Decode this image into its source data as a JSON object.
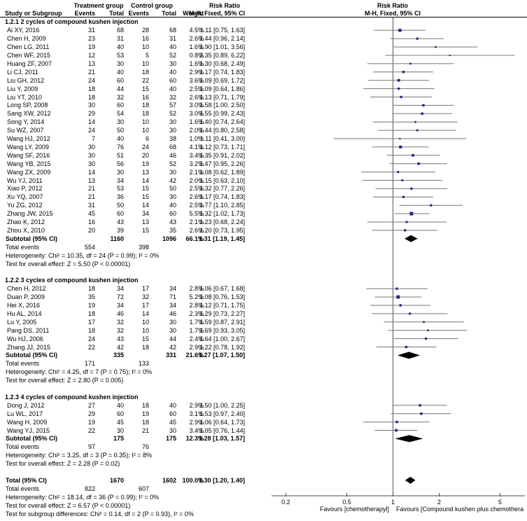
{
  "header": {
    "treatment_group": "Treatment group",
    "control_group": "Control group",
    "risk_ratio": "Risk Ratio",
    "study_or_subgroup": "Study or Subgroup",
    "events": "Events",
    "total": "Total",
    "weight": "Weight",
    "mh_fixed": "M-H, Fixed, 95% CI",
    "plot_risk_ratio": "Risk Ratio",
    "plot_mh_fixed": "M-H, Fixed, 95% CI"
  },
  "colors": {
    "marker": "#28287d",
    "ci_line": "#777777",
    "diamond": "#000000",
    "ref_line": "#555555",
    "axis_line": "#444444",
    "text": "#000000"
  },
  "chart_data": {
    "type": "forest",
    "effect_measure": "Risk Ratio (M-H, Fixed, 95% CI)",
    "x_scale": "log",
    "ticks": [
      "0.2",
      "0.5",
      "1",
      "2",
      "5"
    ],
    "favours_left": "Favours [chemotherapyl]",
    "favours_right": "Favours [Compound kushen plus chemothera",
    "subgroups": [
      {
        "title": "1.2.1 2 cycles of compound kushen injection",
        "studies": [
          {
            "name": "Ai XY, 2016",
            "et": 31,
            "nt": 68,
            "ec": 28,
            "nc": 68,
            "w": 4.5,
            "ci": "1.11 [0.75, 1.63]",
            "rr": 1.11,
            "lo": 0.75,
            "hi": 1.63
          },
          {
            "name": "Chen H, 2009",
            "et": 23,
            "nt": 31,
            "ec": 16,
            "nc": 31,
            "w": 2.6,
            "ci": "1.44 [0.96, 2.14]",
            "rr": 1.44,
            "lo": 0.96,
            "hi": 2.14
          },
          {
            "name": "Chen LG, 2011",
            "et": 19,
            "nt": 40,
            "ec": 10,
            "nc": 40,
            "w": 1.6,
            "ci": "1.90 [1.01, 3.56]",
            "rr": 1.9,
            "lo": 1.01,
            "hi": 3.56
          },
          {
            "name": "Chen WF, 2015",
            "et": 12,
            "nt": 53,
            "ec": 5,
            "nc": 52,
            "w": 0.8,
            "ci": "2.35 [0.89, 6.22]",
            "rr": 2.35,
            "lo": 0.89,
            "hi": 6.22
          },
          {
            "name": "Huang ZF, 2007",
            "et": 13,
            "nt": 30,
            "ec": 10,
            "nc": 30,
            "w": 1.6,
            "ci": "1.30 [0.68, 2.49]",
            "rr": 1.3,
            "lo": 0.68,
            "hi": 2.49
          },
          {
            "name": "Li CJ, 2011",
            "et": 21,
            "nt": 40,
            "ec": 18,
            "nc": 40,
            "w": 2.9,
            "ci": "1.17 [0.74, 1.83]",
            "rr": 1.17,
            "lo": 0.74,
            "hi": 1.83
          },
          {
            "name": "Liu GH, 2012",
            "et": 24,
            "nt": 60,
            "ec": 22,
            "nc": 60,
            "w": 3.6,
            "ci": "1.09 [0.69, 1.72]",
            "rr": 1.09,
            "lo": 0.69,
            "hi": 1.72
          },
          {
            "name": "Liu Y, 2009",
            "et": 18,
            "nt": 44,
            "ec": 15,
            "nc": 40,
            "w": 2.5,
            "ci": "1.09 [0.64, 1.86]",
            "rr": 1.09,
            "lo": 0.64,
            "hi": 1.86
          },
          {
            "name": "Liu YT, 2010",
            "et": 18,
            "nt": 32,
            "ec": 16,
            "nc": 32,
            "w": 2.6,
            "ci": "1.13 [0.71, 1.79]",
            "rr": 1.13,
            "lo": 0.71,
            "hi": 1.79
          },
          {
            "name": "Long SP, 2008",
            "et": 30,
            "nt": 60,
            "ec": 18,
            "nc": 57,
            "w": 3.0,
            "ci": "1.58 [1.00, 2.50]",
            "rr": 1.58,
            "lo": 1.0,
            "hi": 2.5
          },
          {
            "name": "Sang XW, 2012",
            "et": 29,
            "nt": 54,
            "ec": 18,
            "nc": 52,
            "w": 3.0,
            "ci": "1.55 [0.99, 2.43]",
            "rr": 1.55,
            "lo": 0.99,
            "hi": 2.43
          },
          {
            "name": "Song Y, 2014",
            "et": 14,
            "nt": 30,
            "ec": 10,
            "nc": 30,
            "w": 1.6,
            "ci": "1.40 [0.74, 2.64]",
            "rr": 1.4,
            "lo": 0.74,
            "hi": 2.64
          },
          {
            "name": "Su WZ, 2007",
            "et": 24,
            "nt": 50,
            "ec": 10,
            "nc": 30,
            "w": 2.0,
            "ci": "1.44 [0.80, 2.58]",
            "rr": 1.44,
            "lo": 0.8,
            "hi": 2.58
          },
          {
            "name": "Wang HJ, 2012",
            "et": 7,
            "nt": 40,
            "ec": 6,
            "nc": 38,
            "w": 1.0,
            "ci": "1.11 [0.41, 3.00]",
            "rr": 1.11,
            "lo": 0.41,
            "hi": 3.0
          },
          {
            "name": "Wang LY, 2009",
            "et": 30,
            "nt": 76,
            "ec": 24,
            "nc": 68,
            "w": 4.1,
            "ci": "1.12 [0.73, 1.71]",
            "rr": 1.12,
            "lo": 0.73,
            "hi": 1.71
          },
          {
            "name": "Wang SF, 2016",
            "et": 30,
            "nt": 51,
            "ec": 20,
            "nc": 46,
            "w": 3.4,
            "ci": "1.35 [0.91, 2.02]",
            "rr": 1.35,
            "lo": 0.91,
            "hi": 2.02
          },
          {
            "name": "Wang YB, 2015",
            "et": 30,
            "nt": 56,
            "ec": 19,
            "nc": 52,
            "w": 3.2,
            "ci": "1.47 [0.95, 2.26]",
            "rr": 1.47,
            "lo": 0.95,
            "hi": 2.26
          },
          {
            "name": "Wang ZX, 2009",
            "et": 14,
            "nt": 30,
            "ec": 13,
            "nc": 30,
            "w": 2.1,
            "ci": "1.08 [0.62, 1.89]",
            "rr": 1.08,
            "lo": 0.62,
            "hi": 1.89
          },
          {
            "name": "Wu YJ, 2011",
            "et": 13,
            "nt": 34,
            "ec": 14,
            "nc": 42,
            "w": 2.0,
            "ci": "1.15 [0.63, 2.10]",
            "rr": 1.15,
            "lo": 0.63,
            "hi": 2.1
          },
          {
            "name": "Xiao P, 2012",
            "et": 21,
            "nt": 53,
            "ec": 15,
            "nc": 50,
            "w": 2.5,
            "ci": "1.32 [0.77, 2.26]",
            "rr": 1.32,
            "lo": 0.77,
            "hi": 2.26
          },
          {
            "name": "Xu YQ, 2007",
            "et": 21,
            "nt": 36,
            "ec": 15,
            "nc": 30,
            "w": 2.6,
            "ci": "1.17 [0.74, 1.83]",
            "rr": 1.17,
            "lo": 0.74,
            "hi": 1.83
          },
          {
            "name": "Yu ZG, 2012",
            "et": 31,
            "nt": 50,
            "ec": 14,
            "nc": 40,
            "w": 2.5,
            "ci": "1.77 [1.10, 2.85]",
            "rr": 1.77,
            "lo": 1.1,
            "hi": 2.85
          },
          {
            "name": "Zhang JW, 2015",
            "et": 45,
            "nt": 60,
            "ec": 34,
            "nc": 60,
            "w": 5.5,
            "ci": "1.32 [1.02, 1.73]",
            "rr": 1.32,
            "lo": 1.02,
            "hi": 1.73
          },
          {
            "name": "Zhao K, 2012",
            "et": 16,
            "nt": 43,
            "ec": 13,
            "nc": 43,
            "w": 2.1,
            "ci": "1.23 [0.68, 2.24]",
            "rr": 1.23,
            "lo": 0.68,
            "hi": 2.24
          },
          {
            "name": "Zhou X, 2010",
            "et": 20,
            "nt": 39,
            "ec": 15,
            "nc": 35,
            "w": 2.6,
            "ci": "1.20 [0.73, 1.95]",
            "rr": 1.2,
            "lo": 0.73,
            "hi": 1.95
          }
        ],
        "subtotal": {
          "label": "Subtotal (95% CI)",
          "nt": 1160,
          "nc": 1096,
          "w": "66.1%",
          "ci": "1.31 [1.19, 1.45]",
          "rr": 1.31,
          "lo": 1.19,
          "hi": 1.45
        },
        "total_events": {
          "label": "Total events",
          "t": 554,
          "c": 398
        },
        "heterogeneity": "Heterogeneity: Chi² = 10.35, df = 24 (P = 0.99); I² = 0%",
        "overall_effect": "Test for overall effect: Z = 5.50 (P < 0.00001)"
      },
      {
        "title": "1.2.2 3 cycles of compound kushen injection",
        "studies": [
          {
            "name": "Chen H, 2012",
            "et": 18,
            "nt": 34,
            "ec": 17,
            "nc": 34,
            "w": 2.8,
            "ci": "1.06 [0.67, 1.68]",
            "rr": 1.06,
            "lo": 0.67,
            "hi": 1.68
          },
          {
            "name": "Duan P, 2009",
            "et": 35,
            "nt": 72,
            "ec": 32,
            "nc": 71,
            "w": 5.2,
            "ci": "1.08 [0.76, 1.53]",
            "rr": 1.08,
            "lo": 0.76,
            "hi": 1.53
          },
          {
            "name": "Hei X, 2016",
            "et": 19,
            "nt": 34,
            "ec": 17,
            "nc": 34,
            "w": 2.8,
            "ci": "1.12 [0.71, 1.75]",
            "rr": 1.12,
            "lo": 0.71,
            "hi": 1.75
          },
          {
            "name": "Hu AL, 2014",
            "et": 18,
            "nt": 46,
            "ec": 14,
            "nc": 46,
            "w": 2.3,
            "ci": "1.29 [0.73, 2.27]",
            "rr": 1.29,
            "lo": 0.73,
            "hi": 2.27
          },
          {
            "name": "Lu Y, 2005",
            "et": 17,
            "nt": 32,
            "ec": 10,
            "nc": 30,
            "w": 1.7,
            "ci": "1.59 [0.87, 2.91]",
            "rr": 1.59,
            "lo": 0.87,
            "hi": 2.91
          },
          {
            "name": "Pang DS, 2011",
            "et": 18,
            "nt": 32,
            "ec": 10,
            "nc": 30,
            "w": 1.7,
            "ci": "1.69 [0.93, 3.05]",
            "rr": 1.69,
            "lo": 0.93,
            "hi": 3.05
          },
          {
            "name": "Wu HJ, 2006",
            "et": 24,
            "nt": 43,
            "ec": 15,
            "nc": 44,
            "w": 2.4,
            "ci": "1.64 [1.00, 2.67]",
            "rr": 1.64,
            "lo": 1.0,
            "hi": 2.67
          },
          {
            "name": "Zhang JJ, 2015",
            "et": 22,
            "nt": 42,
            "ec": 18,
            "nc": 42,
            "w": 2.9,
            "ci": "1.22 [0.78, 1.92]",
            "rr": 1.22,
            "lo": 0.78,
            "hi": 1.92
          }
        ],
        "subtotal": {
          "label": "Subtotal (95% CI)",
          "nt": 335,
          "nc": 331,
          "w": "21.6%",
          "ci": "1.27 [1.07, 1.50]",
          "rr": 1.27,
          "lo": 1.07,
          "hi": 1.5
        },
        "total_events": {
          "label": "Total events",
          "t": 171,
          "c": 133
        },
        "heterogeneity": "Heterogeneity: Chi² = 4.25, df = 7 (P = 0.75); I² = 0%",
        "overall_effect": "Test for overall effect: Z = 2.80 (P = 0.005)"
      },
      {
        "title": "1.2.3 4 cycles of compound kushen injection",
        "studies": [
          {
            "name": "Dong J, 2012",
            "et": 27,
            "nt": 40,
            "ec": 18,
            "nc": 40,
            "w": 2.9,
            "ci": "1.50 [1.00, 2.25]",
            "rr": 1.5,
            "lo": 1.0,
            "hi": 2.25
          },
          {
            "name": "Lu WL, 2017",
            "et": 29,
            "nt": 60,
            "ec": 19,
            "nc": 60,
            "w": 3.1,
            "ci": "1.53 [0.97, 2.40]",
            "rr": 1.53,
            "lo": 0.97,
            "hi": 2.4
          },
          {
            "name": "Wang H, 2009",
            "et": 19,
            "nt": 45,
            "ec": 18,
            "nc": 45,
            "w": 2.9,
            "ci": "1.06 [0.64, 1.73]",
            "rr": 1.06,
            "lo": 0.64,
            "hi": 1.73
          },
          {
            "name": "Wang YJ, 2015",
            "et": 22,
            "nt": 30,
            "ec": 21,
            "nc": 30,
            "w": 3.4,
            "ci": "1.05 [0.76, 1.44]",
            "rr": 1.05,
            "lo": 0.76,
            "hi": 1.44
          }
        ],
        "subtotal": {
          "label": "Subtotal (95% CI)",
          "nt": 175,
          "nc": 175,
          "w": "12.3%",
          "ci": "1.28 [1.03, 1.57]",
          "rr": 1.28,
          "lo": 1.03,
          "hi": 1.57
        },
        "total_events": {
          "label": "Total events",
          "t": 97,
          "c": 76
        },
        "heterogeneity": "Heterogeneity: Chi² = 3.25, df = 3 (P = 0.35); I² = 8%",
        "overall_effect": "Test for overall effect: Z = 2.28 (P = 0.02)"
      }
    ],
    "total": {
      "label": "Total (95% CI)",
      "nt": 1670,
      "nc": 1602,
      "w": "100.0%",
      "ci": "1.30 [1.20, 1.40]",
      "rr": 1.3,
      "lo": 1.2,
      "hi": 1.4,
      "total_events": {
        "label": "Total events",
        "t": 822,
        "c": 607
      },
      "heterogeneity": "Heterogeneity: Chi² = 18.14, df = 36 (P = 0.99); I² = 0%",
      "overall_effect": "Test for overall effect: Z = 6.57 (P < 0.00001)",
      "subgroup_differences": "Test for subgroup differences: Chi² = 0.14, df = 2 (P = 0.93), I² = 0%"
    }
  }
}
